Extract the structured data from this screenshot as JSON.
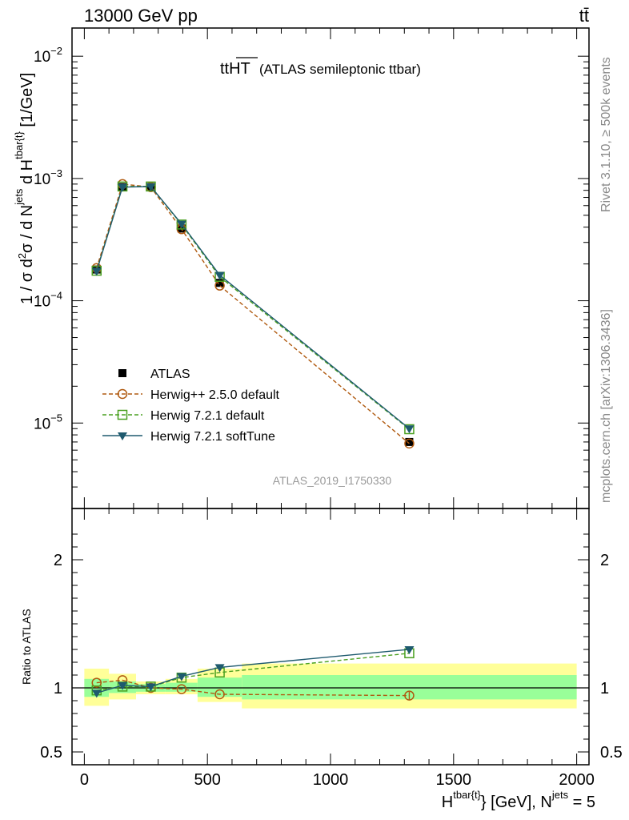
{
  "header": {
    "left": "13000 GeV pp",
    "right": "tt̄"
  },
  "side_labels": {
    "rivet": "Rivet 3.1.10, ≥ 500k events",
    "mcplots": "mcplots.cern.ch [arXiv:1306.3436]"
  },
  "annotation": {
    "title_main": "ttHT",
    "title_sub": "(ATLAS semileptonic ttbar)",
    "analysis_id": "ATLAS_2019_I1750330"
  },
  "axis_text": {
    "top_ylabel": "1 / σ d²σ / d N^jets d H_T^tbar{t} [1/GeV]",
    "ratio_ylabel": "Ratio to ATLAS",
    "xlabel": "H_T^tbar{t} [GeV], N^jets = 5"
  },
  "chart_data": [
    {
      "type": "line",
      "panel": "main",
      "yscale": "log",
      "xlim": [
        -50,
        2050
      ],
      "ylim": [
        2e-06,
        0.017
      ],
      "yticks": [
        {
          "value": 1e-05,
          "base": "10",
          "exp": "−5"
        },
        {
          "value": 0.0001,
          "base": "10",
          "exp": "−4"
        },
        {
          "value": 0.001,
          "base": "10",
          "exp": "−3"
        },
        {
          "value": 0.01,
          "base": "10",
          "exp": "−2"
        }
      ],
      "legend_position": "lower-left",
      "x": [
        50,
        155,
        270,
        395,
        550,
        1320
      ],
      "series": [
        {
          "name": "ATLAS",
          "style": "data",
          "color": "#000000",
          "values": [
            0.00018,
            0.00085,
            0.00085,
            0.00039,
            0.00014,
            7e-06
          ]
        },
        {
          "name": "Herwig++ 2.5.0 default",
          "style": "circle-dashed",
          "color": "#b05a10",
          "values": [
            0.000185,
            0.0009,
            0.00085,
            0.000385,
            0.000133,
            6.8e-06
          ]
        },
        {
          "name": "Herwig 7.2.1 default",
          "style": "square-dashed",
          "color": "#4aa020",
          "values": [
            0.000176,
            0.00086,
            0.00086,
            0.00042,
            0.000157,
            8.9e-06
          ]
        },
        {
          "name": "Herwig 7.2.1 softTune",
          "style": "triangle-solid",
          "color": "#1e5a6e",
          "values": [
            0.000175,
            0.00085,
            0.00086,
            0.000425,
            0.000162,
            9e-06
          ]
        }
      ]
    },
    {
      "type": "line",
      "panel": "ratio",
      "ylabel": "Ratio to ATLAS",
      "ylim": [
        0.4,
        2.4
      ],
      "xlim": [
        -50,
        2050
      ],
      "xticks": [
        "0",
        "500",
        "1000",
        "1500",
        "2000"
      ],
      "yticks": [
        "0.5",
        "1",
        "2"
      ],
      "reference_line": 1,
      "bands": [
        {
          "x0": 0,
          "x1": 100,
          "y_lo": 0.86,
          "y_hi": 1.15,
          "g_lo": 0.93,
          "g_hi": 1.07
        },
        {
          "x0": 100,
          "x1": 210,
          "y_lo": 0.91,
          "y_hi": 1.11,
          "g_lo": 0.96,
          "g_hi": 1.05
        },
        {
          "x0": 210,
          "x1": 330,
          "y_lo": 0.95,
          "y_hi": 1.05,
          "g_lo": 0.97,
          "g_hi": 1.03
        },
        {
          "x0": 330,
          "x1": 460,
          "y_lo": 0.95,
          "y_hi": 1.07,
          "g_lo": 0.97,
          "g_hi": 1.04
        },
        {
          "x0": 460,
          "x1": 640,
          "y_lo": 0.89,
          "y_hi": 1.15,
          "g_lo": 0.93,
          "g_hi": 1.08
        },
        {
          "x0": 640,
          "x1": 2000,
          "y_lo": 0.84,
          "y_hi": 1.19,
          "g_lo": 0.91,
          "g_hi": 1.1
        }
      ],
      "x": [
        50,
        155,
        270,
        395,
        550,
        1320
      ],
      "series": [
        {
          "name": "Herwig++ 2.5.0 default",
          "style": "circle-dashed",
          "color": "#b05a10",
          "values": [
            1.04,
            1.06,
            1.0,
            0.99,
            0.95,
            0.94
          ]
        },
        {
          "name": "Herwig 7.2.1 default",
          "style": "square-dashed",
          "color": "#4aa020",
          "values": [
            0.98,
            1.01,
            1.01,
            1.08,
            1.12,
            1.27
          ]
        },
        {
          "name": "Herwig 7.2.1 softTune",
          "style": "triangle-solid",
          "color": "#1e5a6e",
          "values": [
            0.96,
            1.02,
            1.01,
            1.09,
            1.16,
            1.3
          ]
        }
      ]
    }
  ]
}
